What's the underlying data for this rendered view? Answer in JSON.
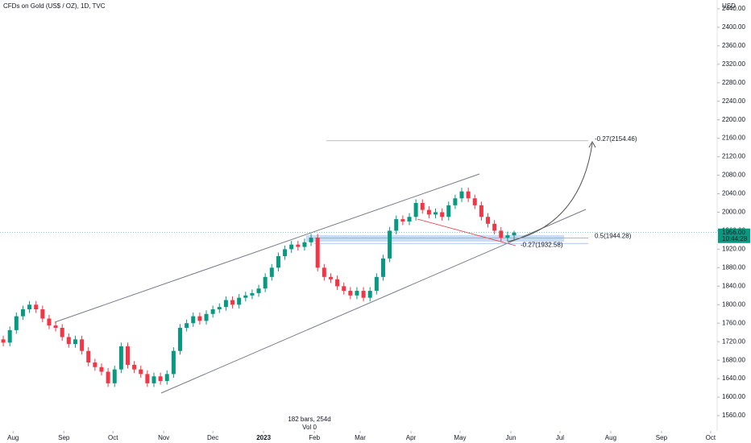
{
  "chart_data": {
    "type": "candlestick",
    "title": "CFDs on Gold (US$ / OZ), 1D, TVC",
    "currency": "USD",
    "status": [
      "182 bars, 254d",
      "Vol 0"
    ],
    "up_color": "#089981",
    "down_color": "#f23645",
    "grid": false,
    "x": [
      -6,
      -2,
      2,
      6,
      10,
      14,
      18,
      22,
      26,
      30,
      34,
      38,
      42,
      46,
      50,
      54,
      58,
      62,
      66,
      70,
      74,
      78,
      82,
      86,
      90,
      94,
      98,
      102,
      106,
      110,
      114,
      118,
      122,
      126,
      130,
      134,
      138,
      142,
      146,
      150,
      154,
      158,
      162,
      166,
      170,
      174,
      178,
      182,
      186,
      190,
      194,
      198,
      202,
      206,
      210,
      214,
      218,
      222,
      226,
      230,
      234,
      238,
      242,
      246,
      250,
      254,
      258,
      262,
      266,
      270,
      274,
      278,
      282,
      286,
      290,
      294,
      298,
      302,
      306
    ],
    "open": [
      1725,
      1718,
      1745,
      1775,
      1790,
      1800,
      1790,
      1770,
      1755,
      1750,
      1730,
      1715,
      1725,
      1700,
      1675,
      1665,
      1655,
      1630,
      1660,
      1710,
      1670,
      1660,
      1650,
      1630,
      1645,
      1635,
      1650,
      1700,
      1750,
      1760,
      1775,
      1765,
      1780,
      1790,
      1795,
      1810,
      1800,
      1815,
      1820,
      1825,
      1835,
      1860,
      1880,
      1905,
      1920,
      1930,
      1925,
      1935,
      1945,
      1880,
      1860,
      1855,
      1840,
      1830,
      1820,
      1830,
      1815,
      1830,
      1860,
      1900,
      1960,
      1985,
      1980,
      1990,
      2020,
      2005,
      1995,
      2000,
      1990,
      2015,
      2030,
      2045,
      2030,
      2015,
      1990,
      1975,
      1960,
      1945,
      1950
    ],
    "high": [
      1733,
      1753,
      1783,
      1798,
      1808,
      1808,
      1798,
      1778,
      1763,
      1758,
      1738,
      1733,
      1733,
      1708,
      1683,
      1673,
      1663,
      1668,
      1718,
      1718,
      1678,
      1668,
      1658,
      1653,
      1653,
      1658,
      1708,
      1758,
      1768,
      1783,
      1783,
      1788,
      1798,
      1803,
      1818,
      1818,
      1823,
      1828,
      1833,
      1843,
      1868,
      1888,
      1913,
      1928,
      1938,
      1938,
      1943,
      1953,
      1953,
      1888,
      1868,
      1863,
      1848,
      1838,
      1838,
      1838,
      1838,
      1868,
      1908,
      1968,
      1993,
      1993,
      1998,
      2028,
      2028,
      2013,
      2008,
      2008,
      2023,
      2038,
      2053,
      2053,
      2038,
      2023,
      1998,
      1983,
      1968,
      1958,
      1960
    ],
    "low": [
      1710,
      1710,
      1737,
      1767,
      1782,
      1782,
      1762,
      1747,
      1742,
      1722,
      1707,
      1707,
      1692,
      1667,
      1657,
      1647,
      1622,
      1622,
      1652,
      1662,
      1652,
      1642,
      1622,
      1622,
      1627,
      1627,
      1642,
      1692,
      1742,
      1752,
      1757,
      1757,
      1772,
      1782,
      1787,
      1792,
      1792,
      1807,
      1812,
      1817,
      1827,
      1852,
      1872,
      1897,
      1912,
      1917,
      1917,
      1927,
      1872,
      1852,
      1847,
      1832,
      1822,
      1812,
      1812,
      1807,
      1807,
      1822,
      1852,
      1892,
      1952,
      1972,
      1972,
      1982,
      1997,
      1987,
      1987,
      1982,
      1982,
      2007,
      2022,
      2022,
      2007,
      1982,
      1967,
      1952,
      1937,
      1937,
      1940
    ],
    "close": [
      1718,
      1745,
      1775,
      1790,
      1800,
      1790,
      1770,
      1755,
      1750,
      1730,
      1715,
      1725,
      1700,
      1675,
      1665,
      1655,
      1630,
      1660,
      1710,
      1670,
      1660,
      1650,
      1630,
      1645,
      1635,
      1650,
      1700,
      1750,
      1760,
      1775,
      1765,
      1780,
      1790,
      1795,
      1810,
      1800,
      1815,
      1820,
      1825,
      1835,
      1860,
      1880,
      1905,
      1920,
      1930,
      1925,
      1935,
      1945,
      1880,
      1860,
      1855,
      1840,
      1830,
      1820,
      1830,
      1815,
      1830,
      1860,
      1900,
      1960,
      1985,
      1980,
      1990,
      2020,
      2005,
      1995,
      2000,
      1990,
      2015,
      2030,
      2045,
      2030,
      2015,
      1990,
      1975,
      1960,
      1945,
      1950,
      1956
    ],
    "xlim": [
      -8,
      430
    ],
    "xticks": [
      {
        "value": 0,
        "label": "Aug"
      },
      {
        "value": 31,
        "label": "Sep"
      },
      {
        "value": 61,
        "label": "Oct"
      },
      {
        "value": 92,
        "label": "Nov"
      },
      {
        "value": 122,
        "label": "Dec"
      },
      {
        "value": 153,
        "label": "2023"
      },
      {
        "value": 184,
        "label": "Feb"
      },
      {
        "value": 212,
        "label": "Mar"
      },
      {
        "value": 243,
        "label": "Apr"
      },
      {
        "value": 273,
        "label": "May"
      },
      {
        "value": 304,
        "label": "Jun"
      },
      {
        "value": 334,
        "label": "Jul"
      },
      {
        "value": 365,
        "label": "Aug"
      },
      {
        "value": 396,
        "label": "Sep"
      },
      {
        "value": 426,
        "label": "Oct"
      }
    ],
    "ylim": [
      1527,
      2459
    ],
    "yticks": [
      {
        "value": 1560,
        "label": "1560.00"
      },
      {
        "value": 1600,
        "label": "1600.00"
      },
      {
        "value": 1640,
        "label": "1640.00"
      },
      {
        "value": 1680,
        "label": "1680.00"
      },
      {
        "value": 1720,
        "label": "1720.00"
      },
      {
        "value": 1760,
        "label": "1760.00"
      },
      {
        "value": 1800,
        "label": "1800.00"
      },
      {
        "value": 1840,
        "label": "1840.00"
      },
      {
        "value": 1880,
        "label": "1880.00"
      },
      {
        "value": 1920,
        "label": "1920.00"
      },
      {
        "value": 1960,
        "label": "1960.00"
      },
      {
        "value": 2000,
        "label": "2000.00"
      },
      {
        "value": 2040,
        "label": "2040.00"
      },
      {
        "value": 2080,
        "label": "2080.00"
      },
      {
        "value": 2120,
        "label": "2120.00"
      },
      {
        "value": 2160,
        "label": "2160.00"
      },
      {
        "value": 2200,
        "label": "2200.00"
      },
      {
        "value": 2240,
        "label": "2240.00"
      },
      {
        "value": 2280,
        "label": "2280.00"
      },
      {
        "value": 2320,
        "label": "2320.00"
      },
      {
        "value": 2360,
        "label": "2360.00"
      },
      {
        "value": 2400,
        "label": "2400.00"
      },
      {
        "value": 2440,
        "label": "2440.00"
      }
    ],
    "levels": [
      {
        "value": 2154.46,
        "label": "-0.27(2154.46)"
      },
      {
        "value": 1944.28,
        "label": "0.5(1944.28)"
      },
      {
        "value": 1932.58,
        "label": "-0.27(1932.58)"
      }
    ],
    "last_price": {
      "value": 1956,
      "label": "1956.00",
      "countdown": "10:44:28"
    }
  }
}
